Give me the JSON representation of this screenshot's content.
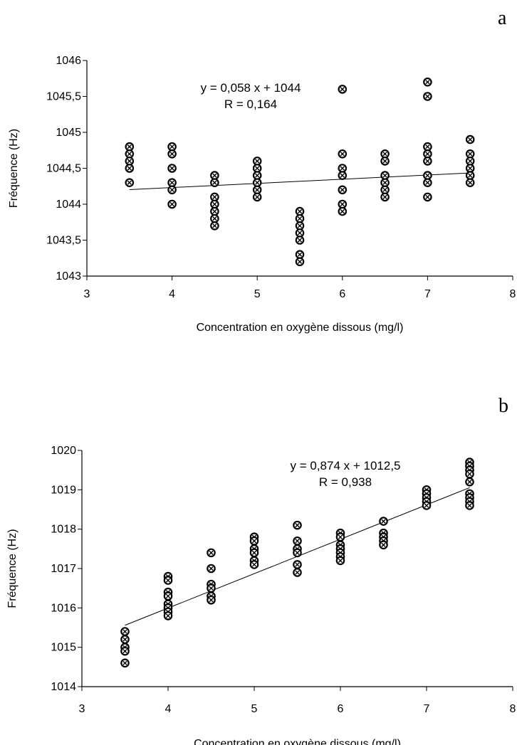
{
  "chart_data": [
    {
      "panel_label": "a",
      "type": "scatter",
      "title": "",
      "xlabel": "Concentration en oxygène dissous (mg/l)",
      "ylabel": "Fréquence (Hz)",
      "xlim": [
        3,
        8
      ],
      "ylim": [
        1043,
        1046
      ],
      "x_ticks": [
        3,
        4,
        5,
        6,
        7,
        8
      ],
      "x_tick_labels": [
        "3",
        "4",
        "5",
        "6",
        "7",
        "8"
      ],
      "y_ticks": [
        1043,
        1043.5,
        1044,
        1044.5,
        1045,
        1045.5,
        1046
      ],
      "y_tick_labels": [
        "1043",
        "1043,5",
        "1044",
        "1044,5",
        "1045",
        "1045,5",
        "1046"
      ],
      "grid": false,
      "points": [
        [
          3.5,
          1044.8
        ],
        [
          3.5,
          1044.7
        ],
        [
          3.5,
          1044.6
        ],
        [
          3.5,
          1044.5
        ],
        [
          3.5,
          1044.3
        ],
        [
          4.0,
          1044.8
        ],
        [
          4.0,
          1044.7
        ],
        [
          4.0,
          1044.5
        ],
        [
          4.0,
          1044.3
        ],
        [
          4.0,
          1044.2
        ],
        [
          4.0,
          1044.0
        ],
        [
          4.5,
          1044.4
        ],
        [
          4.5,
          1044.3
        ],
        [
          4.5,
          1044.1
        ],
        [
          4.5,
          1044.0
        ],
        [
          4.5,
          1043.9
        ],
        [
          4.5,
          1043.8
        ],
        [
          4.5,
          1043.7
        ],
        [
          5.0,
          1044.6
        ],
        [
          5.0,
          1044.5
        ],
        [
          5.0,
          1044.4
        ],
        [
          5.0,
          1044.3
        ],
        [
          5.0,
          1044.2
        ],
        [
          5.0,
          1044.1
        ],
        [
          5.5,
          1043.9
        ],
        [
          5.5,
          1043.8
        ],
        [
          5.5,
          1043.7
        ],
        [
          5.5,
          1043.6
        ],
        [
          5.5,
          1043.5
        ],
        [
          5.5,
          1043.3
        ],
        [
          5.5,
          1043.2
        ],
        [
          6.0,
          1045.6
        ],
        [
          6.0,
          1044.7
        ],
        [
          6.0,
          1044.5
        ],
        [
          6.0,
          1044.4
        ],
        [
          6.0,
          1044.2
        ],
        [
          6.0,
          1044.0
        ],
        [
          6.0,
          1043.9
        ],
        [
          6.5,
          1044.7
        ],
        [
          6.5,
          1044.6
        ],
        [
          6.5,
          1044.4
        ],
        [
          6.5,
          1044.3
        ],
        [
          6.5,
          1044.2
        ],
        [
          6.5,
          1044.1
        ],
        [
          7.0,
          1045.7
        ],
        [
          7.0,
          1045.5
        ],
        [
          7.0,
          1044.8
        ],
        [
          7.0,
          1044.7
        ],
        [
          7.0,
          1044.6
        ],
        [
          7.0,
          1044.4
        ],
        [
          7.0,
          1044.3
        ],
        [
          7.0,
          1044.1
        ],
        [
          7.5,
          1044.9
        ],
        [
          7.5,
          1044.7
        ],
        [
          7.5,
          1044.6
        ],
        [
          7.5,
          1044.5
        ],
        [
          7.5,
          1044.4
        ],
        [
          7.5,
          1044.3
        ]
      ],
      "trendline": {
        "slope": 0.058,
        "intercept": 1044.0,
        "x_range": [
          3.5,
          7.5
        ]
      },
      "annotation": [
        "y = 0,058 x + 1044",
        "R = 0,164"
      ]
    },
    {
      "panel_label": "b",
      "type": "scatter",
      "title": "",
      "xlabel": "Concentration en oxygène dissous (mg/l)",
      "ylabel": "Fréquence (Hz)",
      "xlim": [
        3,
        8
      ],
      "ylim": [
        1014,
        1020
      ],
      "x_ticks": [
        3,
        4,
        5,
        6,
        7,
        8
      ],
      "x_tick_labels": [
        "3",
        "4",
        "5",
        "6",
        "7",
        "8"
      ],
      "y_ticks": [
        1014,
        1015,
        1016,
        1017,
        1018,
        1019,
        1020
      ],
      "y_tick_labels": [
        "1014",
        "1015",
        "1016",
        "1017",
        "1018",
        "1019",
        "1020"
      ],
      "grid": false,
      "points": [
        [
          3.5,
          1015.4
        ],
        [
          3.5,
          1015.2
        ],
        [
          3.5,
          1015.0
        ],
        [
          3.5,
          1014.9
        ],
        [
          3.5,
          1014.6
        ],
        [
          4.0,
          1016.8
        ],
        [
          4.0,
          1016.7
        ],
        [
          4.0,
          1016.4
        ],
        [
          4.0,
          1016.3
        ],
        [
          4.0,
          1016.1
        ],
        [
          4.0,
          1016.0
        ],
        [
          4.0,
          1015.9
        ],
        [
          4.0,
          1015.8
        ],
        [
          4.5,
          1017.4
        ],
        [
          4.5,
          1017.0
        ],
        [
          4.5,
          1016.6
        ],
        [
          4.5,
          1016.5
        ],
        [
          4.5,
          1016.3
        ],
        [
          4.5,
          1016.2
        ],
        [
          5.0,
          1017.8
        ],
        [
          5.0,
          1017.7
        ],
        [
          5.0,
          1017.5
        ],
        [
          5.0,
          1017.4
        ],
        [
          5.0,
          1017.2
        ],
        [
          5.0,
          1017.1
        ],
        [
          5.5,
          1018.1
        ],
        [
          5.5,
          1017.7
        ],
        [
          5.5,
          1017.5
        ],
        [
          5.5,
          1017.4
        ],
        [
          5.5,
          1017.1
        ],
        [
          5.5,
          1016.9
        ],
        [
          6.0,
          1017.9
        ],
        [
          6.0,
          1017.8
        ],
        [
          6.0,
          1017.6
        ],
        [
          6.0,
          1017.5
        ],
        [
          6.0,
          1017.4
        ],
        [
          6.0,
          1017.3
        ],
        [
          6.0,
          1017.2
        ],
        [
          6.5,
          1018.2
        ],
        [
          6.5,
          1017.9
        ],
        [
          6.5,
          1017.8
        ],
        [
          6.5,
          1017.7
        ],
        [
          6.5,
          1017.6
        ],
        [
          7.0,
          1019.0
        ],
        [
          7.0,
          1018.9
        ],
        [
          7.0,
          1018.8
        ],
        [
          7.0,
          1018.7
        ],
        [
          7.0,
          1018.6
        ],
        [
          7.5,
          1019.7
        ],
        [
          7.5,
          1019.6
        ],
        [
          7.5,
          1019.5
        ],
        [
          7.5,
          1019.4
        ],
        [
          7.5,
          1019.2
        ],
        [
          7.5,
          1018.9
        ],
        [
          7.5,
          1018.8
        ],
        [
          7.5,
          1018.7
        ],
        [
          7.5,
          1018.6
        ]
      ],
      "trendline": {
        "slope": 0.874,
        "intercept": 1012.5,
        "x_range": [
          3.5,
          7.5
        ]
      },
      "annotation": [
        "y = 0,874 x + 1012,5",
        "R = 0,938"
      ]
    }
  ]
}
